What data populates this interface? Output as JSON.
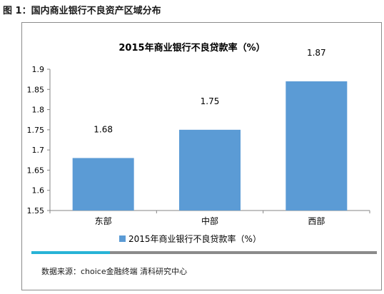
{
  "figure_caption": "图 1：国内商业银行不良资产区域分布",
  "source": "数据来源：choice金融终端  清科研究中心",
  "colors": {
    "bar": "#5b9bd5",
    "accent": "#27b3d6",
    "divider": "#8a8a8a"
  },
  "chart_data": {
    "type": "bar",
    "title": "2015年商业银行不良贷款率（%）",
    "xlabel": "",
    "ylabel": "",
    "categories": [
      "东部",
      "中部",
      "西部"
    ],
    "series": [
      {
        "name": "2015年商业银行不良贷款率（%）",
        "values": [
          1.68,
          1.75,
          1.87
        ]
      }
    ],
    "data_labels": [
      "1.68",
      "1.75",
      "1.87"
    ],
    "ylim": [
      1.55,
      1.9
    ],
    "yticks": [
      1.55,
      1.6,
      1.65,
      1.7,
      1.75,
      1.8,
      1.85,
      1.9
    ],
    "ytick_labels": [
      "1.55",
      "1.6",
      "1.65",
      "1.7",
      "1.75",
      "1.8",
      "1.85",
      "1.9"
    ],
    "grid": false,
    "legend_position": "bottom"
  }
}
